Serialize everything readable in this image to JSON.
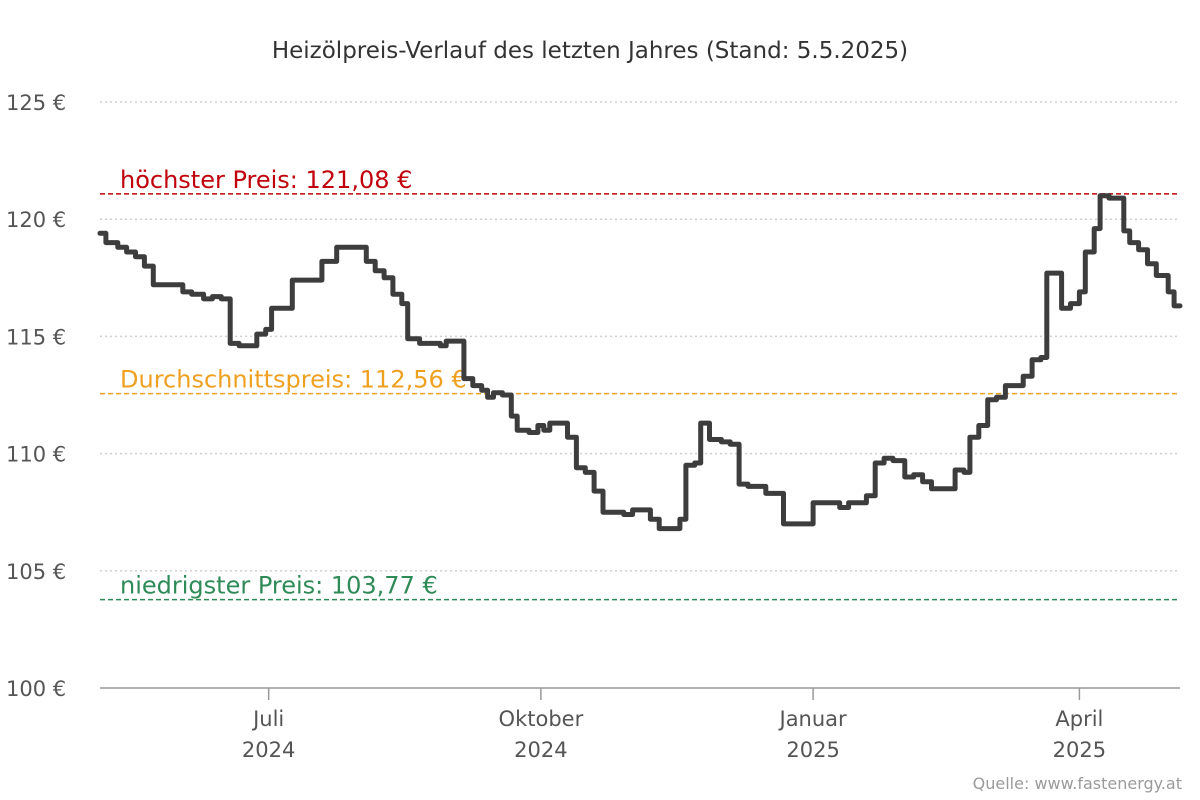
{
  "chart_data": {
    "type": "line",
    "title": "Heizölpreis-Verlauf des letzten Jahres (Stand: 5.5.2025)",
    "source": "Quelle: www.fastenergy.at",
    "y_axis": {
      "range": [
        100,
        125
      ],
      "ticks": [
        100,
        105,
        110,
        115,
        120,
        125
      ],
      "tick_labels": [
        "100 €",
        "105 €",
        "110 €",
        "115 €",
        "120 €",
        "125 €"
      ],
      "grid": "dotted"
    },
    "x_axis": {
      "range": [
        "2024-05-05",
        "2025-05-05"
      ],
      "ticks": [
        {
          "date": "2024-07-01",
          "line1": "Juli",
          "line2": "2024"
        },
        {
          "date": "2024-10-01",
          "line1": "Oktober",
          "line2": "2024"
        },
        {
          "date": "2025-01-01",
          "line1": "Januar",
          "line2": "2025"
        },
        {
          "date": "2025-04-01",
          "line1": "April",
          "line2": "2025"
        }
      ]
    },
    "reference_lines": [
      {
        "label": "höchster Preis: 121,08 €",
        "value": 121.08,
        "color": "#c0000a"
      },
      {
        "label": "Durchschnittspreis: 112,56 €",
        "value": 112.56,
        "color": "#f0a020"
      },
      {
        "label": "niedrigster Preis: 103,77 €",
        "value": 103.77,
        "color": "#2e8b57"
      }
    ],
    "series": [
      {
        "color": "#3d3d3d",
        "points": [
          [
            "2024-05-05",
            119.4
          ],
          [
            "2024-05-07",
            119.0
          ],
          [
            "2024-05-11",
            118.8
          ],
          [
            "2024-05-14",
            118.6
          ],
          [
            "2024-05-17",
            118.4
          ],
          [
            "2024-05-20",
            118.0
          ],
          [
            "2024-05-23",
            117.2
          ],
          [
            "2024-05-27",
            117.2
          ],
          [
            "2024-05-30",
            117.2
          ],
          [
            "2024-06-02",
            116.9
          ],
          [
            "2024-06-05",
            116.8
          ],
          [
            "2024-06-09",
            116.6
          ],
          [
            "2024-06-12",
            116.7
          ],
          [
            "2024-06-15",
            116.6
          ],
          [
            "2024-06-18",
            114.7
          ],
          [
            "2024-06-21",
            114.6
          ],
          [
            "2024-06-25",
            114.6
          ],
          [
            "2024-06-27",
            115.1
          ],
          [
            "2024-06-30",
            115.3
          ],
          [
            "2024-07-02",
            116.2
          ],
          [
            "2024-07-06",
            116.2
          ],
          [
            "2024-07-09",
            117.4
          ],
          [
            "2024-07-12",
            117.4
          ],
          [
            "2024-07-16",
            117.4
          ],
          [
            "2024-07-19",
            118.2
          ],
          [
            "2024-07-22",
            118.2
          ],
          [
            "2024-07-24",
            118.8
          ],
          [
            "2024-07-28",
            118.8
          ],
          [
            "2024-07-31",
            118.8
          ],
          [
            "2024-08-03",
            118.2
          ],
          [
            "2024-08-06",
            117.8
          ],
          [
            "2024-08-09",
            117.5
          ],
          [
            "2024-08-12",
            116.8
          ],
          [
            "2024-08-15",
            116.4
          ],
          [
            "2024-08-17",
            114.9
          ],
          [
            "2024-08-21",
            114.7
          ],
          [
            "2024-08-25",
            114.7
          ],
          [
            "2024-08-28",
            114.6
          ],
          [
            "2024-08-30",
            114.8
          ],
          [
            "2024-09-03",
            114.8
          ],
          [
            "2024-09-05",
            113.2
          ],
          [
            "2024-09-08",
            112.9
          ],
          [
            "2024-09-11",
            112.7
          ],
          [
            "2024-09-13",
            112.4
          ],
          [
            "2024-09-15",
            112.6
          ],
          [
            "2024-09-18",
            112.5
          ],
          [
            "2024-09-21",
            111.6
          ],
          [
            "2024-09-23",
            111.0
          ],
          [
            "2024-09-27",
            110.9
          ],
          [
            "2024-09-30",
            111.2
          ],
          [
            "2024-10-02",
            111.0
          ],
          [
            "2024-10-04",
            111.3
          ],
          [
            "2024-10-08",
            111.3
          ],
          [
            "2024-10-10",
            110.7
          ],
          [
            "2024-10-13",
            109.4
          ],
          [
            "2024-10-16",
            109.2
          ],
          [
            "2024-10-19",
            108.4
          ],
          [
            "2024-10-22",
            107.5
          ],
          [
            "2024-10-26",
            107.5
          ],
          [
            "2024-10-29",
            107.4
          ],
          [
            "2024-11-01",
            107.6
          ],
          [
            "2024-11-04",
            107.6
          ],
          [
            "2024-11-07",
            107.2
          ],
          [
            "2024-11-10",
            106.8
          ],
          [
            "2024-11-14",
            106.8
          ],
          [
            "2024-11-17",
            107.2
          ],
          [
            "2024-11-19",
            109.5
          ],
          [
            "2024-11-22",
            109.6
          ],
          [
            "2024-11-24",
            111.3
          ],
          [
            "2024-11-27",
            110.6
          ],
          [
            "2024-12-01",
            110.5
          ],
          [
            "2024-12-04",
            110.4
          ],
          [
            "2024-12-07",
            108.7
          ],
          [
            "2024-12-10",
            108.6
          ],
          [
            "2024-12-13",
            108.6
          ],
          [
            "2024-12-16",
            108.3
          ],
          [
            "2024-12-19",
            108.3
          ],
          [
            "2024-12-22",
            107.0
          ],
          [
            "2024-12-26",
            107.0
          ],
          [
            "2024-12-29",
            107.0
          ],
          [
            "2025-01-01",
            107.9
          ],
          [
            "2025-01-04",
            107.9
          ],
          [
            "2025-01-07",
            107.9
          ],
          [
            "2025-01-10",
            107.7
          ],
          [
            "2025-01-13",
            107.9
          ],
          [
            "2025-01-16",
            107.9
          ],
          [
            "2025-01-19",
            108.2
          ],
          [
            "2025-01-22",
            109.6
          ],
          [
            "2025-01-25",
            109.8
          ],
          [
            "2025-01-28",
            109.7
          ],
          [
            "2025-02-01",
            109.0
          ],
          [
            "2025-02-04",
            109.1
          ],
          [
            "2025-02-07",
            108.8
          ],
          [
            "2025-02-10",
            108.5
          ],
          [
            "2025-02-13",
            108.5
          ],
          [
            "2025-02-16",
            108.5
          ],
          [
            "2025-02-18",
            109.3
          ],
          [
            "2025-02-21",
            109.2
          ],
          [
            "2025-02-23",
            110.7
          ],
          [
            "2025-02-26",
            111.2
          ],
          [
            "2025-03-01",
            112.3
          ],
          [
            "2025-03-04",
            112.4
          ],
          [
            "2025-03-07",
            112.9
          ],
          [
            "2025-03-10",
            112.9
          ],
          [
            "2025-03-13",
            113.3
          ],
          [
            "2025-03-16",
            114.0
          ],
          [
            "2025-03-19",
            114.1
          ],
          [
            "2025-03-21",
            117.7
          ],
          [
            "2025-03-24",
            117.7
          ],
          [
            "2025-03-26",
            116.2
          ],
          [
            "2025-03-29",
            116.4
          ],
          [
            "2025-04-01",
            116.9
          ],
          [
            "2025-04-03",
            118.6
          ],
          [
            "2025-04-06",
            119.6
          ],
          [
            "2025-04-08",
            121.0
          ],
          [
            "2025-04-11",
            120.9
          ],
          [
            "2025-04-14",
            120.9
          ],
          [
            "2025-04-16",
            119.5
          ],
          [
            "2025-04-18",
            119.0
          ],
          [
            "2025-04-21",
            118.7
          ],
          [
            "2025-04-24",
            118.1
          ],
          [
            "2025-04-27",
            117.6
          ],
          [
            "2025-04-29",
            117.6
          ],
          [
            "2025-05-01",
            116.9
          ],
          [
            "2025-05-03",
            116.3
          ],
          [
            "2025-05-05",
            116.3
          ]
        ]
      }
    ]
  }
}
